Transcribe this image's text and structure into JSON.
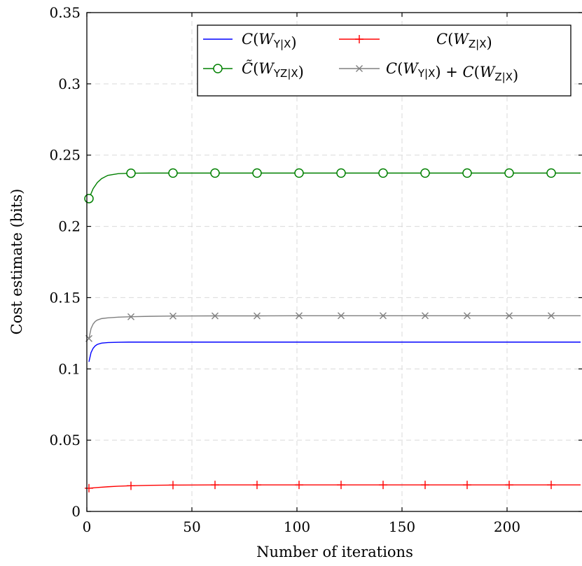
{
  "chart_data": {
    "type": "line",
    "xlabel": "Number of iterations",
    "ylabel": "Cost estimate (bits)",
    "xlim": [
      0,
      235
    ],
    "ylim": [
      0,
      0.35
    ],
    "xticks": [
      0,
      50,
      100,
      150,
      200
    ],
    "xtick_labels": [
      "0",
      "50",
      "100",
      "150",
      "200"
    ],
    "yticks": [
      0,
      0.05,
      0.1,
      0.15,
      0.2,
      0.25,
      0.3,
      0.35
    ],
    "ytick_labels": [
      "0",
      "0.05",
      "0.1",
      "0.15",
      "0.2",
      "0.25",
      "0.3",
      "0.35"
    ],
    "grid": true,
    "legend_position": "top-right",
    "series": [
      {
        "name": "C(W_{Y|X})",
        "color": "#0000ff",
        "marker": "none",
        "x": [
          1,
          2,
          3,
          4,
          5,
          7,
          10,
          15,
          20,
          30,
          50,
          100,
          150,
          200,
          235
        ],
        "y": [
          0.105,
          0.1115,
          0.1145,
          0.1162,
          0.1172,
          0.1181,
          0.1185,
          0.1187,
          0.1188,
          0.1188,
          0.1188,
          0.1188,
          0.1188,
          0.1188,
          0.1188
        ]
      },
      {
        "name": "C(W_{Z|X})",
        "color": "#ff0000",
        "marker": "plus",
        "x": [
          1,
          5,
          10,
          15,
          21,
          30,
          41,
          61,
          81,
          101,
          121,
          141,
          161,
          181,
          201,
          221,
          235
        ],
        "y": [
          0.0163,
          0.0168,
          0.0173,
          0.0177,
          0.018,
          0.0183,
          0.0185,
          0.0186,
          0.0186,
          0.0186,
          0.0186,
          0.0186,
          0.0186,
          0.0186,
          0.0186,
          0.0186,
          0.0186
        ],
        "marker_x": [
          1,
          21,
          41,
          61,
          81,
          101,
          121,
          141,
          161,
          181,
          201,
          221
        ]
      },
      {
        "name": "C̃(W_{YZ|X})",
        "color": "#008000",
        "marker": "circle",
        "x": [
          1,
          3,
          5,
          7,
          10,
          15,
          21,
          30,
          41,
          61,
          81,
          101,
          121,
          141,
          161,
          181,
          201,
          221,
          235
        ],
        "y": [
          0.2195,
          0.2265,
          0.2308,
          0.2335,
          0.2358,
          0.237,
          0.2373,
          0.2374,
          0.2374,
          0.2374,
          0.2374,
          0.2374,
          0.2374,
          0.2374,
          0.2374,
          0.2374,
          0.2374,
          0.2374,
          0.2374
        ],
        "marker_x": [
          1,
          21,
          41,
          61,
          81,
          101,
          121,
          141,
          161,
          181,
          201,
          221
        ]
      },
      {
        "name": "C(W_{Y|X}) + C(W_{Z|X})",
        "color": "#808080",
        "marker": "x",
        "x": [
          1,
          2,
          3,
          4,
          5,
          7,
          10,
          15,
          21,
          30,
          41,
          61,
          81,
          101,
          121,
          141,
          161,
          181,
          201,
          221,
          235
        ],
        "y": [
          0.1213,
          0.1283,
          0.1315,
          0.1333,
          0.1343,
          0.1353,
          0.1358,
          0.1363,
          0.1366,
          0.1369,
          0.1371,
          0.1372,
          0.1372,
          0.1373,
          0.1373,
          0.1373,
          0.1373,
          0.1373,
          0.1373,
          0.1373,
          0.1373
        ],
        "marker_x": [
          1,
          21,
          41,
          61,
          81,
          101,
          121,
          141,
          161,
          181,
          201,
          221
        ]
      }
    ]
  }
}
